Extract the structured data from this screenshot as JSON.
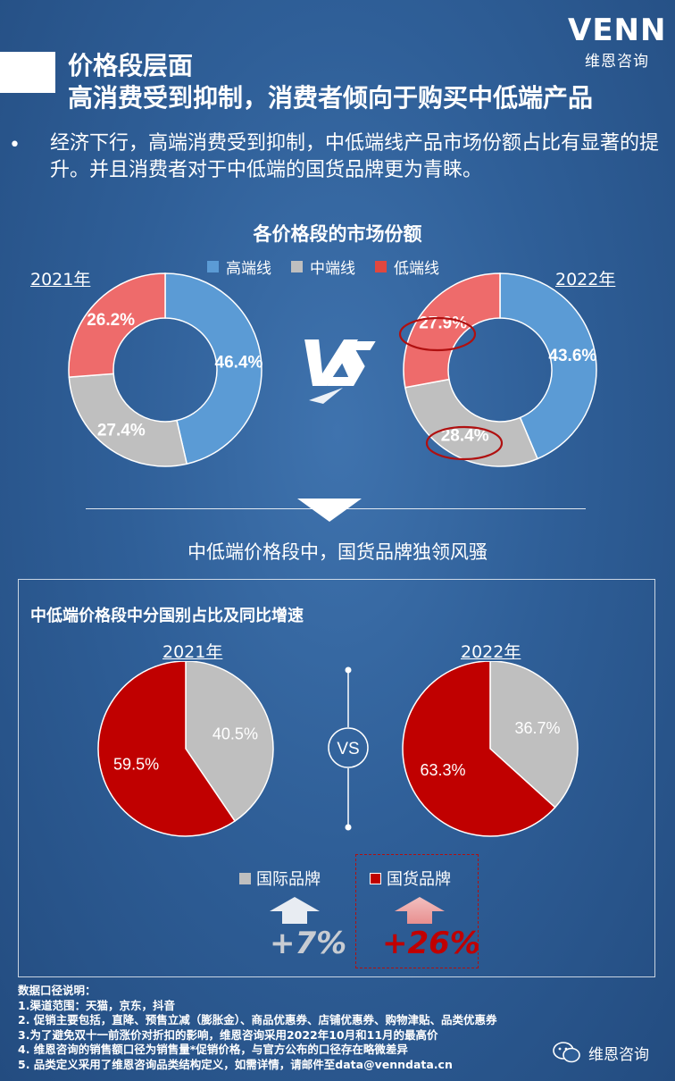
{
  "header": {
    "title_line1": "价格段层面",
    "title_line2": "高消费受到抑制，消费者倾向于购买中低端产品"
  },
  "logo": {
    "mark": "VENN",
    "subtitle": "维恩咨询"
  },
  "bullet": {
    "symbol": "•",
    "text": "经济下行，高端消费受到抑制，中低端线产品市场份额占比有显著的提升。并且消费者对于中低端的国货品牌更为青睐。"
  },
  "vs_text": "VS",
  "divider_subhead": "中低端价格段中，国货品牌独领风骚",
  "panel": {
    "title": "中低端价格段中分国别占比及同比增速",
    "vs_label": "VS"
  },
  "chart_data": [
    {
      "type": "pie",
      "title": "各价格段的市场份额",
      "subtitle": "2021年",
      "donut": true,
      "categories": [
        "高端线",
        "中端线",
        "低端线"
      ],
      "values": [
        46.4,
        27.4,
        26.2
      ],
      "labels": [
        "46.4%",
        "27.4%",
        "26.2%"
      ],
      "colors": [
        "#5b9bd5",
        "#bfbfbf",
        "#ee6b6b"
      ]
    },
    {
      "type": "pie",
      "title": "各价格段的市场份额",
      "subtitle": "2022年",
      "donut": true,
      "categories": [
        "高端线",
        "中端线",
        "低端线"
      ],
      "values": [
        43.6,
        28.4,
        27.9
      ],
      "labels": [
        "43.6%",
        "28.4%",
        "27.9%"
      ],
      "colors": [
        "#5b9bd5",
        "#bfbfbf",
        "#ee6b6b"
      ]
    },
    {
      "type": "pie",
      "title": "中低端价格段中分国别占比及同比增速",
      "subtitle": "2021年",
      "donut": false,
      "categories": [
        "国际品牌",
        "国货品牌"
      ],
      "values": [
        40.5,
        59.5
      ],
      "labels": [
        "40.5%",
        "59.5%"
      ],
      "colors": [
        "#bfbfbf",
        "#c00000"
      ]
    },
    {
      "type": "pie",
      "title": "中低端价格段中分国别占比及同比增速",
      "subtitle": "2022年",
      "donut": false,
      "categories": [
        "国际品牌",
        "国货品牌"
      ],
      "values": [
        36.7,
        63.3
      ],
      "labels": [
        "36.7%",
        "63.3%"
      ],
      "colors": [
        "#bfbfbf",
        "#c00000"
      ]
    }
  ],
  "growth": {
    "intl": {
      "label": "国际品牌",
      "value": "+7%",
      "color": "#bfbfbf"
    },
    "domestic": {
      "label": "国货品牌",
      "value": "+26%",
      "color": "#c00000"
    }
  },
  "notes": {
    "heading": "数据口径说明：",
    "lines": [
      "1.渠道范围：天猫，京东，抖音",
      "2. 促销主要包括，直降、预售立减（膨胀金）、商品优惠券、店铺优惠券、购物津贴、品类优惠券",
      "3.为了避免双十一前涨价对折扣的影响，维恩咨询采用2022年10月和11月的最高价",
      "4. 维恩咨询的销售额口径为销售量*促销价格，与官方公布的口径存在略微差异",
      "5. 品类定义采用了维恩咨询品类结构定义，如需详情，请邮件至data@venndata.cn"
    ]
  },
  "wechat": {
    "label": "维恩咨询"
  }
}
